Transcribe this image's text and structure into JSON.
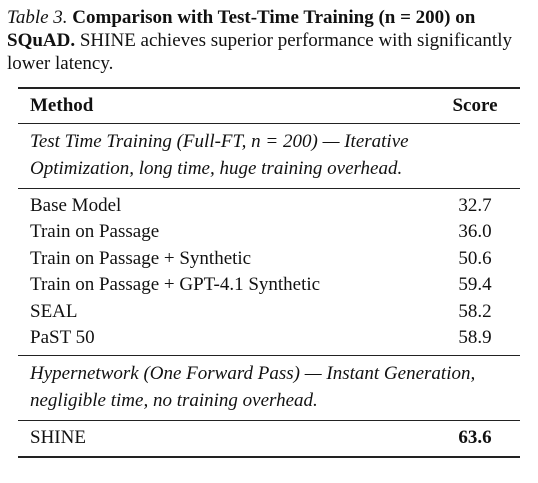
{
  "caption": {
    "label": "Table 3.",
    "title": "Comparison with Test-Time Training (n = 200) on SQuAD.",
    "description": "SHINE achieves superior performance with significantly lower latency."
  },
  "table": {
    "header": [
      "Method",
      "Score"
    ],
    "sections": [
      {
        "heading": "Test Time Training (Full-FT, n = 200) — Iterative Optimization, long time, huge training overhead.",
        "rows": [
          [
            "Base Model",
            "32.7"
          ],
          [
            "Train on Passage",
            "36.0"
          ],
          [
            "Train on Passage + Synthetic",
            "50.6"
          ],
          [
            "Train on Passage + GPT-4.1 Synthetic",
            "59.4"
          ],
          [
            "SEAL",
            "58.2"
          ],
          [
            "PaST 50",
            "58.9"
          ]
        ]
      },
      {
        "heading": "Hypernetwork (One Forward Pass) — Instant Generation, negligible time, no training overhead.",
        "rows": [
          [
            "SHINE",
            "63.6"
          ]
        ]
      }
    ]
  }
}
